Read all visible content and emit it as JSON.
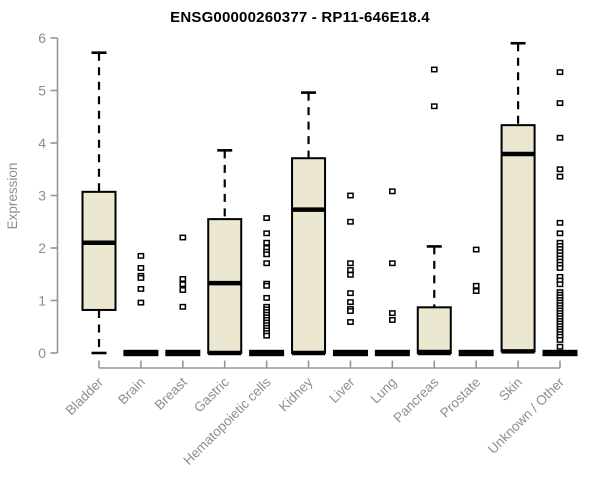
{
  "chart_data": {
    "type": "boxplot",
    "title": "ENSG00000260377 - RP11-646E18.4",
    "ylabel": "Expression",
    "xlabel": "",
    "ylim": [
      0,
      6
    ],
    "yticks": [
      0,
      1,
      2,
      3,
      4,
      5,
      6
    ],
    "grid": false,
    "legend": false,
    "categories": [
      "Bladder",
      "Brain",
      "Breast",
      "Gastric",
      "Hematopoietic cells",
      "Kidney",
      "Liver",
      "Lung",
      "Pancreas",
      "Prostate",
      "Skin",
      "Unknown / Other"
    ],
    "boxes": [
      {
        "category": "Bladder",
        "low": 0,
        "q1": 0.82,
        "median": 2.1,
        "q3": 3.07,
        "high": 5.72,
        "outliers": []
      },
      {
        "category": "Brain",
        "low": 0,
        "q1": 0,
        "median": 0,
        "q3": 0,
        "high": 0,
        "outliers": [
          1.85,
          1.62,
          1.47,
          1.43,
          1.22,
          0.96
        ]
      },
      {
        "category": "Breast",
        "low": 0,
        "q1": 0,
        "median": 0,
        "q3": 0,
        "high": 0,
        "outliers": [
          2.2,
          1.41,
          1.31,
          1.2,
          0.88
        ]
      },
      {
        "category": "Gastric",
        "low": 0,
        "q1": 0,
        "median": 1.33,
        "q3": 2.55,
        "high": 3.86,
        "outliers": []
      },
      {
        "category": "Hematopoietic cells",
        "low": 0,
        "q1": 0,
        "median": 0,
        "q3": 0,
        "high": 0,
        "outliers": [
          2.57,
          2.28,
          2.1,
          2.0,
          1.93,
          1.88,
          1.71,
          1.32,
          1.28,
          1.05,
          0.88,
          0.83,
          0.78,
          0.73,
          0.68,
          0.63,
          0.58,
          0.53,
          0.48,
          0.43,
          0.38,
          0.33
        ]
      },
      {
        "category": "Kidney",
        "low": 0,
        "q1": 0,
        "median": 2.73,
        "q3": 3.71,
        "high": 4.96,
        "outliers": []
      },
      {
        "category": "Liver",
        "low": 0,
        "q1": 0,
        "median": 0,
        "q3": 0,
        "high": 0,
        "outliers": [
          3.0,
          2.5,
          1.71,
          1.58,
          1.49,
          1.14,
          0.97,
          0.84,
          0.8,
          0.59
        ]
      },
      {
        "category": "Lung",
        "low": 0,
        "q1": 0,
        "median": 0,
        "q3": 0,
        "high": 0,
        "outliers": [
          3.08,
          1.71,
          0.76,
          0.63
        ]
      },
      {
        "category": "Pancreas",
        "low": 0,
        "q1": 0,
        "median": 0.02,
        "q3": 0.87,
        "high": 2.03,
        "outliers": [
          5.4,
          4.7
        ]
      },
      {
        "category": "Prostate",
        "low": 0,
        "q1": 0,
        "median": 0,
        "q3": 0,
        "high": 0,
        "outliers": [
          1.97,
          1.28,
          1.18
        ]
      },
      {
        "category": "Skin",
        "low": 0,
        "q1": 0.03,
        "median": 3.79,
        "q3": 4.34,
        "high": 5.9,
        "outliers": []
      },
      {
        "category": "Unknown / Other",
        "low": 0,
        "q1": 0,
        "median": 0,
        "q3": 0,
        "high": 0,
        "outliers": [
          5.35,
          4.76,
          4.1,
          3.5,
          3.36,
          2.48,
          2.28,
          2.1,
          2.04,
          1.98,
          1.92,
          1.86,
          1.8,
          1.74,
          1.68,
          1.62,
          1.45,
          1.38,
          1.31,
          1.16,
          1.11,
          1.06,
          1.01,
          0.96,
          0.91,
          0.86,
          0.81,
          0.76,
          0.71,
          0.66,
          0.61,
          0.56,
          0.51,
          0.46,
          0.41,
          0.36,
          0.31,
          0.25,
          0.12
        ]
      }
    ],
    "colors": {
      "box_fill": "#ece7d0",
      "box_stroke": "#000000",
      "median": "#000000",
      "whisker": "#000000",
      "outlier_stroke": "#000000",
      "outlier_fill": "#ffffff",
      "zero_bar": "#000000",
      "axis": "#969696",
      "tick_label": "#8f8f8f",
      "title": "#000000",
      "background": "#ffffff"
    }
  }
}
